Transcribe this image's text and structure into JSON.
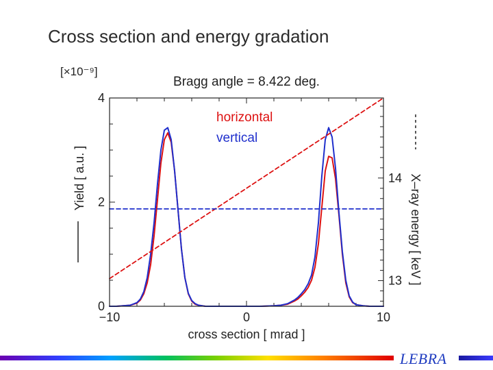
{
  "slide": {
    "title": "Cross section and energy gradation",
    "brand": "LEBRA"
  },
  "colors": {
    "horizontal": "#dd1111",
    "vertical": "#1f2fcc",
    "text": "#222222"
  },
  "chart_data": {
    "type": "line",
    "title": "Bragg angle = 8.422 deg.",
    "xlabel": "cross section  [ mrad ]",
    "ylabel": "Yield [ a.u. ]",
    "y_scale_label": "[×10⁻⁹]",
    "y2label": "X–ray energy [ keV ]",
    "xlim": [
      -10,
      10
    ],
    "ylim": [
      0,
      4
    ],
    "y2lim": [
      12.75,
      14.78
    ],
    "x_ticks": [
      {
        "value": -10,
        "label": "−10"
      },
      {
        "value": 0,
        "label": "0"
      },
      {
        "value": 10,
        "label": "10"
      }
    ],
    "y_ticks": [
      {
        "value": 0,
        "label": "0"
      },
      {
        "value": 2,
        "label": "2"
      },
      {
        "value": 4,
        "label": "4"
      }
    ],
    "y2_ticks": [
      {
        "value": 13,
        "label": "13"
      },
      {
        "value": 14,
        "label": "14"
      }
    ],
    "legend": [
      "horizontal",
      "vertical"
    ],
    "x": [
      -10,
      -9.5,
      -9,
      -8.5,
      -8,
      -7.75,
      -7.5,
      -7.25,
      -7,
      -6.75,
      -6.5,
      -6.25,
      -6,
      -5.75,
      -5.5,
      -5.25,
      -5,
      -4.75,
      -4.5,
      -4.25,
      -4,
      -3.75,
      -3.5,
      -3,
      -2.5,
      -2,
      -1,
      0,
      1,
      2,
      2.5,
      3,
      3.5,
      3.75,
      4,
      4.25,
      4.5,
      4.75,
      5,
      5.25,
      5.5,
      5.75,
      6,
      6.25,
      6.5,
      6.75,
      7,
      7.25,
      7.5,
      7.75,
      8,
      8.5,
      9,
      9.5,
      10
    ],
    "series": [
      {
        "name": "horizontal",
        "style": "solid",
        "axis": "left",
        "values": [
          0.0,
          0.0,
          0.01,
          0.02,
          0.06,
          0.12,
          0.24,
          0.45,
          0.8,
          1.35,
          2.05,
          2.75,
          3.2,
          3.33,
          3.15,
          2.6,
          1.85,
          1.1,
          0.55,
          0.24,
          0.1,
          0.04,
          0.02,
          0.0,
          0.0,
          0.0,
          0.0,
          0.0,
          0.0,
          0.01,
          0.02,
          0.04,
          0.1,
          0.14,
          0.2,
          0.27,
          0.36,
          0.5,
          0.75,
          1.2,
          1.9,
          2.6,
          2.88,
          2.85,
          2.45,
          1.75,
          1.0,
          0.45,
          0.18,
          0.07,
          0.03,
          0.01,
          0.0,
          0.0,
          0.0
        ]
      },
      {
        "name": "vertical",
        "style": "solid",
        "axis": "left",
        "values": [
          0.0,
          0.0,
          0.01,
          0.02,
          0.07,
          0.14,
          0.28,
          0.55,
          1.0,
          1.6,
          2.35,
          3.0,
          3.38,
          3.43,
          3.2,
          2.6,
          1.85,
          1.1,
          0.55,
          0.25,
          0.11,
          0.05,
          0.02,
          0.0,
          0.0,
          0.0,
          0.0,
          0.0,
          0.0,
          0.01,
          0.02,
          0.05,
          0.12,
          0.17,
          0.24,
          0.32,
          0.43,
          0.6,
          0.95,
          1.6,
          2.5,
          3.2,
          3.43,
          3.25,
          2.65,
          1.8,
          1.05,
          0.5,
          0.2,
          0.08,
          0.03,
          0.01,
          0.0,
          0.0,
          0.0
        ]
      },
      {
        "name": "X-ray energy",
        "style": "dashed",
        "axis": "right",
        "x": [
          -10,
          10
        ],
        "values": [
          13.02,
          14.78
        ]
      },
      {
        "name": "vertical energy",
        "style": "dashed",
        "axis": "left",
        "x": [
          -10,
          10
        ],
        "values": [
          1.87,
          1.87
        ]
      }
    ]
  }
}
